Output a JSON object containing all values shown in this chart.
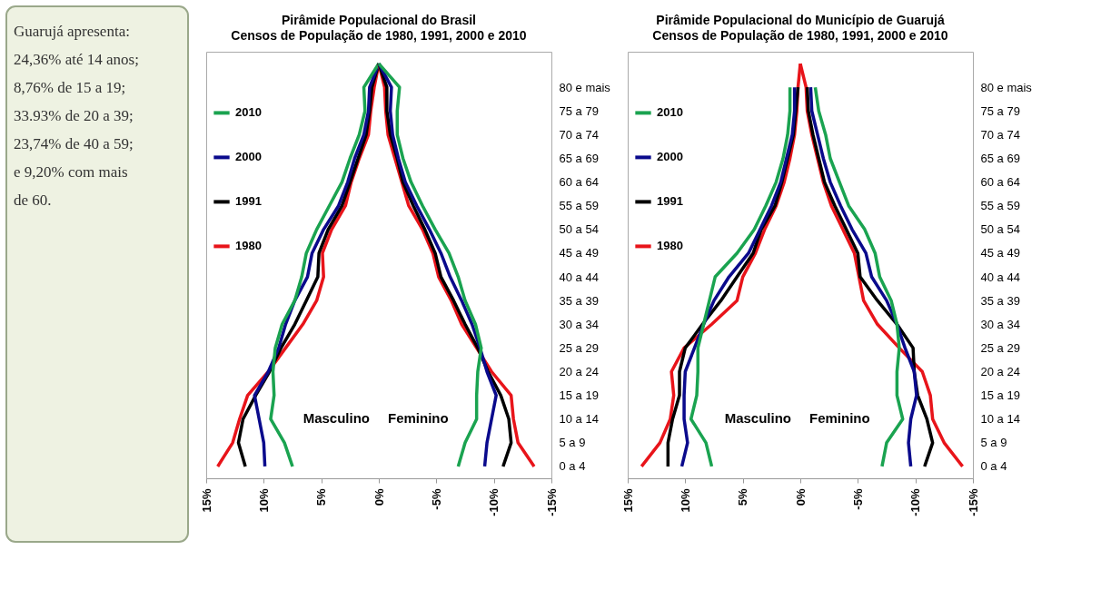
{
  "chart_data": [
    {
      "type": "other",
      "annotations": [
        "Guarujá apresenta:",
        "24,36% até 14 anos;",
        "8,76% de 15 a 19;",
        "33.93% de 20 a 39;",
        "23,74% de 40 a 59;",
        "e 9,20% com mais",
        "de 60."
      ]
    },
    {
      "type": "line",
      "orientation": "horizontal",
      "title": "Pirâmide Populacional do Brasil",
      "subtitle": "Censos de População de 1980, 1991, 2000 e 2010",
      "categories": [
        null,
        "80 e mais",
        "75 a 79",
        "70 a 74",
        "65 a 69",
        "60 a 64",
        "55 a 59",
        "50 a 54",
        "45 a 49",
        "40 a 44",
        "35 a 39",
        "30 a 34",
        "25 a 29",
        "20 a 24",
        "15 a 19",
        "10 a 14",
        "5 a 9",
        "0 a 4"
      ],
      "xlim": [
        15,
        -15
      ],
      "xticks": [
        {
          "value": 15,
          "label": "15%"
        },
        {
          "value": 10,
          "label": "10%"
        },
        {
          "value": 5,
          "label": "5%"
        },
        {
          "value": 0,
          "label": "0%"
        },
        {
          "value": -5,
          "label": "-5%"
        },
        {
          "value": -10,
          "label": "-10%"
        },
        {
          "value": -15,
          "label": "-15%"
        }
      ],
      "legend": "left",
      "line_style": "solid",
      "marker": "none",
      "annotations": [
        "Masculino",
        "Feminino"
      ],
      "series": [
        {
          "name": "1980",
          "color": "#e8141a",
          "values": [
            0,
            0.4,
            0.7,
            0.9,
            1.7,
            2.4,
            2.9,
            4.1,
            4.9,
            4.8,
            5.4,
            6.6,
            8.1,
            9.6,
            11.4,
            12.1,
            12.7,
            14.0
          ]
        },
        {
          "name": "1991",
          "color": "#000000",
          "values": [
            0,
            0.6,
            0.8,
            1.1,
            1.8,
            2.5,
            3.2,
            4.4,
            5.2,
            5.3,
            6.3,
            7.3,
            8.5,
            9.5,
            10.7,
            11.8,
            12.2,
            11.6
          ]
        },
        {
          "name": "2000",
          "color": "#0a0a8c",
          "values": [
            0,
            0.8,
            0.9,
            1.3,
            2.1,
            2.7,
            3.5,
            4.8,
            5.8,
            6.2,
            7.3,
            8.1,
            8.7,
            9.6,
            10.8,
            10.4,
            10.0,
            9.9
          ]
        },
        {
          "name": "2010",
          "color": "#1aa350",
          "values": [
            0,
            1.3,
            1.2,
            1.7,
            2.5,
            3.2,
            4.3,
            5.4,
            6.3,
            6.7,
            7.3,
            8.4,
            9.0,
            9.2,
            9.1,
            9.4,
            8.2,
            7.5
          ]
        },
        {
          "color": "#e8141a",
          "values": [
            0,
            -0.5,
            -0.6,
            -0.8,
            -1.4,
            -2.0,
            -2.6,
            -3.8,
            -4.7,
            -5.2,
            -6.3,
            -7.2,
            -8.5,
            -9.8,
            -11.5,
            -11.7,
            -12.1,
            -13.5
          ]
        },
        {
          "color": "#000000",
          "values": [
            0,
            -0.7,
            -0.7,
            -1.0,
            -1.6,
            -2.1,
            -3.0,
            -4.0,
            -4.9,
            -5.4,
            -6.5,
            -7.5,
            -8.6,
            -9.5,
            -10.6,
            -11.3,
            -11.5,
            -10.8
          ]
        },
        {
          "color": "#0a0a8c",
          "values": [
            0,
            -1.1,
            -1.0,
            -1.2,
            -1.7,
            -2.3,
            -3.3,
            -4.4,
            -5.4,
            -6.2,
            -7.2,
            -8.1,
            -8.8,
            -9.4,
            -10.2,
            -9.8,
            -9.4,
            -9.2
          ]
        },
        {
          "color": "#1aa350",
          "values": [
            0,
            -1.8,
            -1.6,
            -1.6,
            -2.1,
            -2.8,
            -3.8,
            -4.9,
            -6.1,
            -6.9,
            -7.5,
            -8.4,
            -8.9,
            -8.6,
            -8.5,
            -8.5,
            -7.5,
            -6.9
          ]
        }
      ]
    },
    {
      "type": "line",
      "orientation": "horizontal",
      "title": "Pirâmide Populacional do Município de Guarujá",
      "subtitle": "Censos de População de 1980, 1991, 2000 e 2010",
      "categories": [
        null,
        "80 e mais",
        "75 a 79",
        "70 a 74",
        "65 a 69",
        "60 a 64",
        "55 a 59",
        "50 a 54",
        "45 a 49",
        "40 a 44",
        "35 a 39",
        "30 a 34",
        "25 a 29",
        "20 a 24",
        "15 a 19",
        "10 a 14",
        "5 a 9",
        "0 a 4"
      ],
      "xlim": [
        15,
        -15
      ],
      "xticks": [
        {
          "value": 15,
          "label": "15%"
        },
        {
          "value": 10,
          "label": "10%"
        },
        {
          "value": 5,
          "label": "5%"
        },
        {
          "value": 0,
          "label": "0%"
        },
        {
          "value": -5,
          "label": "-5%"
        },
        {
          "value": -10,
          "label": "-10%"
        },
        {
          "value": -15,
          "label": "-15%"
        }
      ],
      "legend": "left",
      "line_style": "solid",
      "marker": "none",
      "annotations": [
        "Masculino",
        "Feminino"
      ],
      "series": [
        {
          "name": "1980",
          "color": "#e8141a",
          "values": [
            0,
            0.2,
            0.3,
            0.5,
            0.9,
            1.4,
            2.1,
            3.1,
            3.9,
            5.0,
            5.5,
            7.7,
            10.1,
            11.2,
            11.0,
            11.3,
            12.2,
            13.8
          ]
        },
        {
          "name": "1991",
          "color": "#000000",
          "values": [
            null,
            0.2,
            0.4,
            0.6,
            1.1,
            1.6,
            2.2,
            3.4,
            4.1,
            5.5,
            6.9,
            8.5,
            10.0,
            10.5,
            10.5,
            11.1,
            11.5,
            11.5
          ]
        },
        {
          "name": "2000",
          "color": "#0a0a8c",
          "values": [
            null,
            0.5,
            0.5,
            0.7,
            1.2,
            1.7,
            2.5,
            3.5,
            4.5,
            6.2,
            7.5,
            8.4,
            9.2,
            10.0,
            10.1,
            10.1,
            9.8,
            10.3
          ]
        },
        {
          "name": "2010",
          "color": "#1aa350",
          "values": [
            null,
            0.9,
            0.9,
            1.1,
            1.5,
            2.1,
            3.0,
            4.0,
            5.5,
            7.4,
            7.9,
            8.4,
            8.9,
            8.9,
            9.0,
            9.5,
            8.2,
            7.7
          ]
        },
        {
          "color": "#e8141a",
          "values": [
            0,
            -0.5,
            -0.6,
            -1.0,
            -1.5,
            -2.0,
            -2.7,
            -3.7,
            -4.7,
            -5.1,
            -5.5,
            -6.7,
            -8.6,
            -10.6,
            -11.3,
            -11.5,
            -12.5,
            -14.1
          ]
        },
        {
          "color": "#000000",
          "values": [
            null,
            -0.6,
            -0.7,
            -1.1,
            -1.6,
            -2.1,
            -3.0,
            -4.0,
            -5.0,
            -5.2,
            -6.7,
            -8.4,
            -9.8,
            -9.9,
            -10.2,
            -11.0,
            -11.5,
            -10.8
          ]
        },
        {
          "color": "#0a0a8c",
          "values": [
            null,
            -0.9,
            -1.0,
            -1.5,
            -2.0,
            -2.6,
            -3.5,
            -4.5,
            -5.7,
            -6.2,
            -7.5,
            -8.4,
            -9.1,
            -9.9,
            -10.1,
            -9.6,
            -9.4,
            -9.6
          ]
        },
        {
          "color": "#1aa350",
          "values": [
            null,
            -1.3,
            -1.6,
            -2.2,
            -2.6,
            -3.4,
            -4.2,
            -5.6,
            -6.5,
            -6.9,
            -7.9,
            -8.4,
            -8.6,
            -8.4,
            -8.4,
            -8.9,
            -7.5,
            -7.1
          ]
        }
      ]
    }
  ]
}
